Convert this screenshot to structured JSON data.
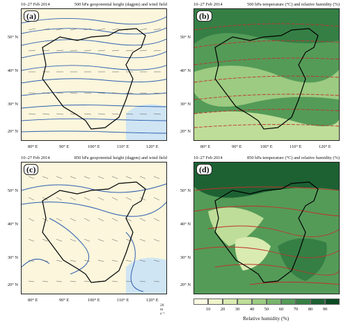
{
  "panels": [
    {
      "id": "a",
      "label": "(a)",
      "date": "10–27 Feb 2014",
      "title": "500 hPa geopotential height (dagpm) and wind field"
    },
    {
      "id": "b",
      "label": "(b)",
      "date": "10–27 Feb 2014",
      "title": "500 hPa temperature (°C) and relative humidity (%)"
    },
    {
      "id": "c",
      "label": "(c)",
      "date": "10–27 Feb 2014",
      "title": "850 hPa geopotential height (dagpm) and wind field"
    },
    {
      "id": "d",
      "label": "(d)",
      "date": "10–27 Feb 2014",
      "title": "850 hPa temperature (°C) and relative humidity (%)"
    }
  ],
  "lat_ticks": [
    "50° N",
    "40° N",
    "30° N",
    "20° N"
  ],
  "lon_ticks": [
    "80° E",
    "90° E",
    "100° E",
    "110° E",
    "120° E"
  ],
  "wind_ref": "20 m s⁻¹",
  "colorbar": {
    "title": "Relative humidity (%)",
    "ticks": [
      "10",
      "20",
      "30",
      "40",
      "50",
      "60",
      "70",
      "80",
      "90"
    ],
    "colors": [
      "#fbfbe3",
      "#eef3c9",
      "#d9ebb0",
      "#bedd98",
      "#9ccb81",
      "#78b46c",
      "#549b58",
      "#357f45",
      "#1d6133",
      "#0b4a24"
    ]
  },
  "colors": {
    "land_ab": "#fbf6dc",
    "water": "#cfe5f3",
    "contour": "#2f5fb0",
    "temp": "#c0322a",
    "border": "#000000"
  }
}
